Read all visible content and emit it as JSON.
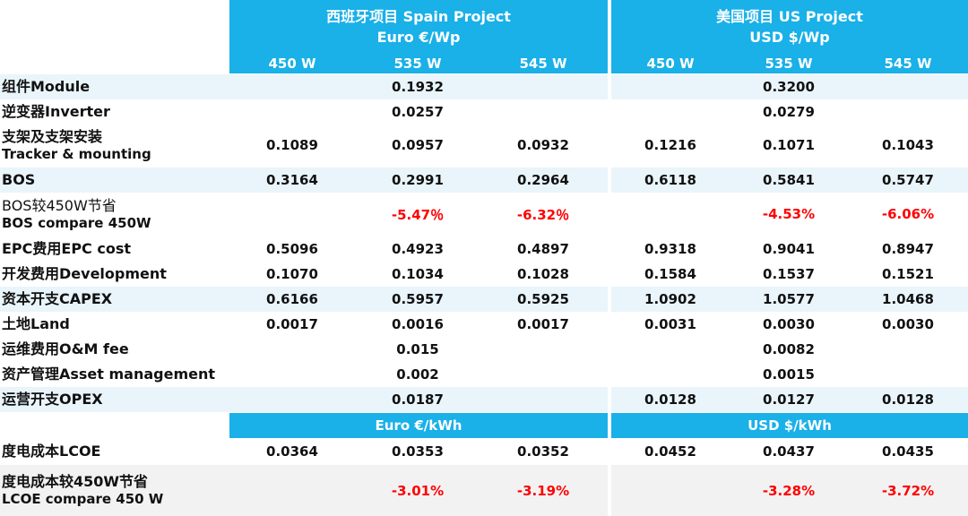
{
  "header": {
    "spain_title": "西班牙项目 Spain Project",
    "spain_unit": "Euro €/Wp",
    "us_title": "美国项目  US Project",
    "us_unit": "USD $/Wp"
  },
  "columns": [
    "450 W",
    "535 W",
    "545 W",
    "450 W",
    "535 W",
    "545 W"
  ],
  "rows": [
    {
      "label1": "组件Module",
      "label2": "",
      "cells": [
        "",
        "0.1932",
        "",
        "",
        "0.3200",
        ""
      ],
      "bg": "light"
    },
    {
      "label1": "逆变器Inverter",
      "label2": "",
      "cells": [
        "",
        "0.0257",
        "",
        "",
        "0.0279",
        ""
      ],
      "bg": "white"
    },
    {
      "label1": "支架及支架安装",
      "label2": "Tracker & mounting",
      "cells": [
        "0.1089",
        "0.0957",
        "0.0932",
        "0.1216",
        "0.1071",
        "0.1043"
      ],
      "bg": "white"
    },
    {
      "label1": "BOS",
      "label2": "",
      "cells": [
        "0.3164",
        "0.2991",
        "0.2964",
        "0.6118",
        "0.5841",
        "0.5747"
      ],
      "bg": "light"
    },
    {
      "label1": "BOS较450W节省",
      "label2": "BOS compare 450W",
      "cells": [
        "",
        "-5.47％",
        "-6.32％",
        "",
        "-4.53%",
        "-6.06%"
      ],
      "bg": "white",
      "red": true,
      "normal": true
    },
    {
      "label1": "EPC费用EPC cost",
      "label2": "",
      "cells": [
        "0.5096",
        "0.4923",
        "0.4897",
        "0.9318",
        "0.9041",
        "0.8947"
      ],
      "bg": "white"
    },
    {
      "label1": "开发费用Development",
      "label2": "",
      "cells": [
        "0.1070",
        "0.1034",
        "0.1028",
        "0.1584",
        "0.1537",
        "0.1521"
      ],
      "bg": "white"
    },
    {
      "label1": "资本开支CAPEX",
      "label2": "",
      "cells": [
        "0.6166",
        "0.5957",
        "0.5925",
        "1.0902",
        "1.0577",
        "1.0468"
      ],
      "bg": "light"
    },
    {
      "label1": "土地Land",
      "label2": "",
      "cells": [
        "0.0017",
        "0.0016",
        "0.0017",
        "0.0031",
        "0.0030",
        "0.0030"
      ],
      "bg": "white"
    },
    {
      "label1": "运维费用O&M fee",
      "label2": "",
      "cells": [
        "",
        "0.015",
        "",
        "",
        "0.0082",
        ""
      ],
      "bg": "white"
    },
    {
      "label1": "资产管理Asset management",
      "label2": "",
      "cells": [
        "",
        "0.002",
        "",
        "",
        "0.0015",
        ""
      ],
      "bg": "white"
    },
    {
      "label1": "运营开支OPEX",
      "label2": "",
      "cells": [
        "",
        "0.0187",
        "",
        "0.0128",
        "0.0127",
        "0.0128"
      ],
      "bg": "light"
    }
  ],
  "kwh_band": {
    "spain": "Euro €/kWh",
    "us": "USD $/kWh"
  },
  "lcoe_rows": [
    {
      "label1": "度电成本LCOE",
      "label2": "",
      "cells": [
        "0.0364",
        "0.0353",
        "0.0352",
        "0.0452",
        "0.0437",
        "0.0435"
      ],
      "bg": "white"
    },
    {
      "label1": "度电成本较450W节省",
      "label2": "LCOE compare 450 W",
      "cells": [
        "",
        "-3.01%",
        "-3.19%",
        "",
        "-3.28%",
        "-3.72%"
      ],
      "bg": "gray",
      "red": true
    }
  ],
  "colors": {
    "header_blue": "#1ab0e8",
    "light_row": "#e9f5fb",
    "red": "#ff0000"
  }
}
